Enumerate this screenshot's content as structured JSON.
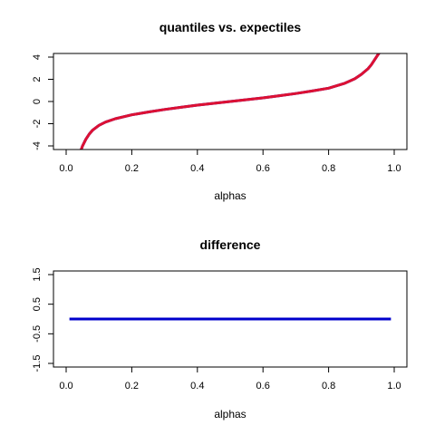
{
  "chart_data": [
    {
      "type": "line",
      "title": "quantiles vs. expectiles",
      "xlabel": "alphas",
      "ylabel": "",
      "xlim": [
        0,
        1
      ],
      "ylim": [
        -4,
        4
      ],
      "xticks": [
        "0.0",
        "0.2",
        "0.4",
        "0.6",
        "0.8",
        "1.0"
      ],
      "yticks": [
        "-4",
        "-2",
        "0",
        "2",
        "4"
      ],
      "grid": false,
      "series": [
        {
          "color": "#0000cc",
          "x": [
            0.045,
            0.05,
            0.06,
            0.07,
            0.08,
            0.1,
            0.12,
            0.15,
            0.2,
            0.25,
            0.3,
            0.35,
            0.4,
            0.45,
            0.5,
            0.55,
            0.6,
            0.65,
            0.7,
            0.75,
            0.8,
            0.85,
            0.88,
            0.9,
            0.92,
            0.93,
            0.94,
            0.95,
            0.955
          ],
          "y": [
            -4.4,
            -4.0,
            -3.4,
            -2.95,
            -2.6,
            -2.15,
            -1.85,
            -1.55,
            -1.2,
            -0.95,
            -0.72,
            -0.52,
            -0.33,
            -0.16,
            0.0,
            0.16,
            0.33,
            0.52,
            0.72,
            0.95,
            1.2,
            1.65,
            2.05,
            2.45,
            2.95,
            3.3,
            3.75,
            4.2,
            4.4
          ]
        },
        {
          "color": "#dd1133",
          "x": [
            0.045,
            0.05,
            0.06,
            0.07,
            0.08,
            0.1,
            0.12,
            0.15,
            0.2,
            0.25,
            0.3,
            0.35,
            0.4,
            0.45,
            0.5,
            0.55,
            0.6,
            0.65,
            0.7,
            0.75,
            0.8,
            0.85,
            0.88,
            0.9,
            0.92,
            0.93,
            0.94,
            0.95,
            0.955
          ],
          "y": [
            -4.4,
            -4.0,
            -3.4,
            -2.95,
            -2.6,
            -2.15,
            -1.85,
            -1.55,
            -1.2,
            -0.95,
            -0.72,
            -0.52,
            -0.33,
            -0.16,
            0.0,
            0.16,
            0.33,
            0.52,
            0.72,
            0.95,
            1.2,
            1.65,
            2.05,
            2.45,
            2.95,
            3.3,
            3.75,
            4.2,
            4.4
          ]
        }
      ]
    },
    {
      "type": "line",
      "title": "difference",
      "xlabel": "alphas",
      "ylabel": "",
      "xlim": [
        0,
        1
      ],
      "ylim": [
        -1.5,
        1.5
      ],
      "xticks": [
        "0.0",
        "0.2",
        "0.4",
        "0.6",
        "0.8",
        "1.0"
      ],
      "yticks": [
        "-1.5",
        "-0.5",
        "0.5",
        "1.5"
      ],
      "grid": false,
      "series": [
        {
          "color": "#0000cc",
          "x": [
            0.01,
            0.99
          ],
          "y": [
            0,
            0
          ]
        }
      ]
    }
  ]
}
